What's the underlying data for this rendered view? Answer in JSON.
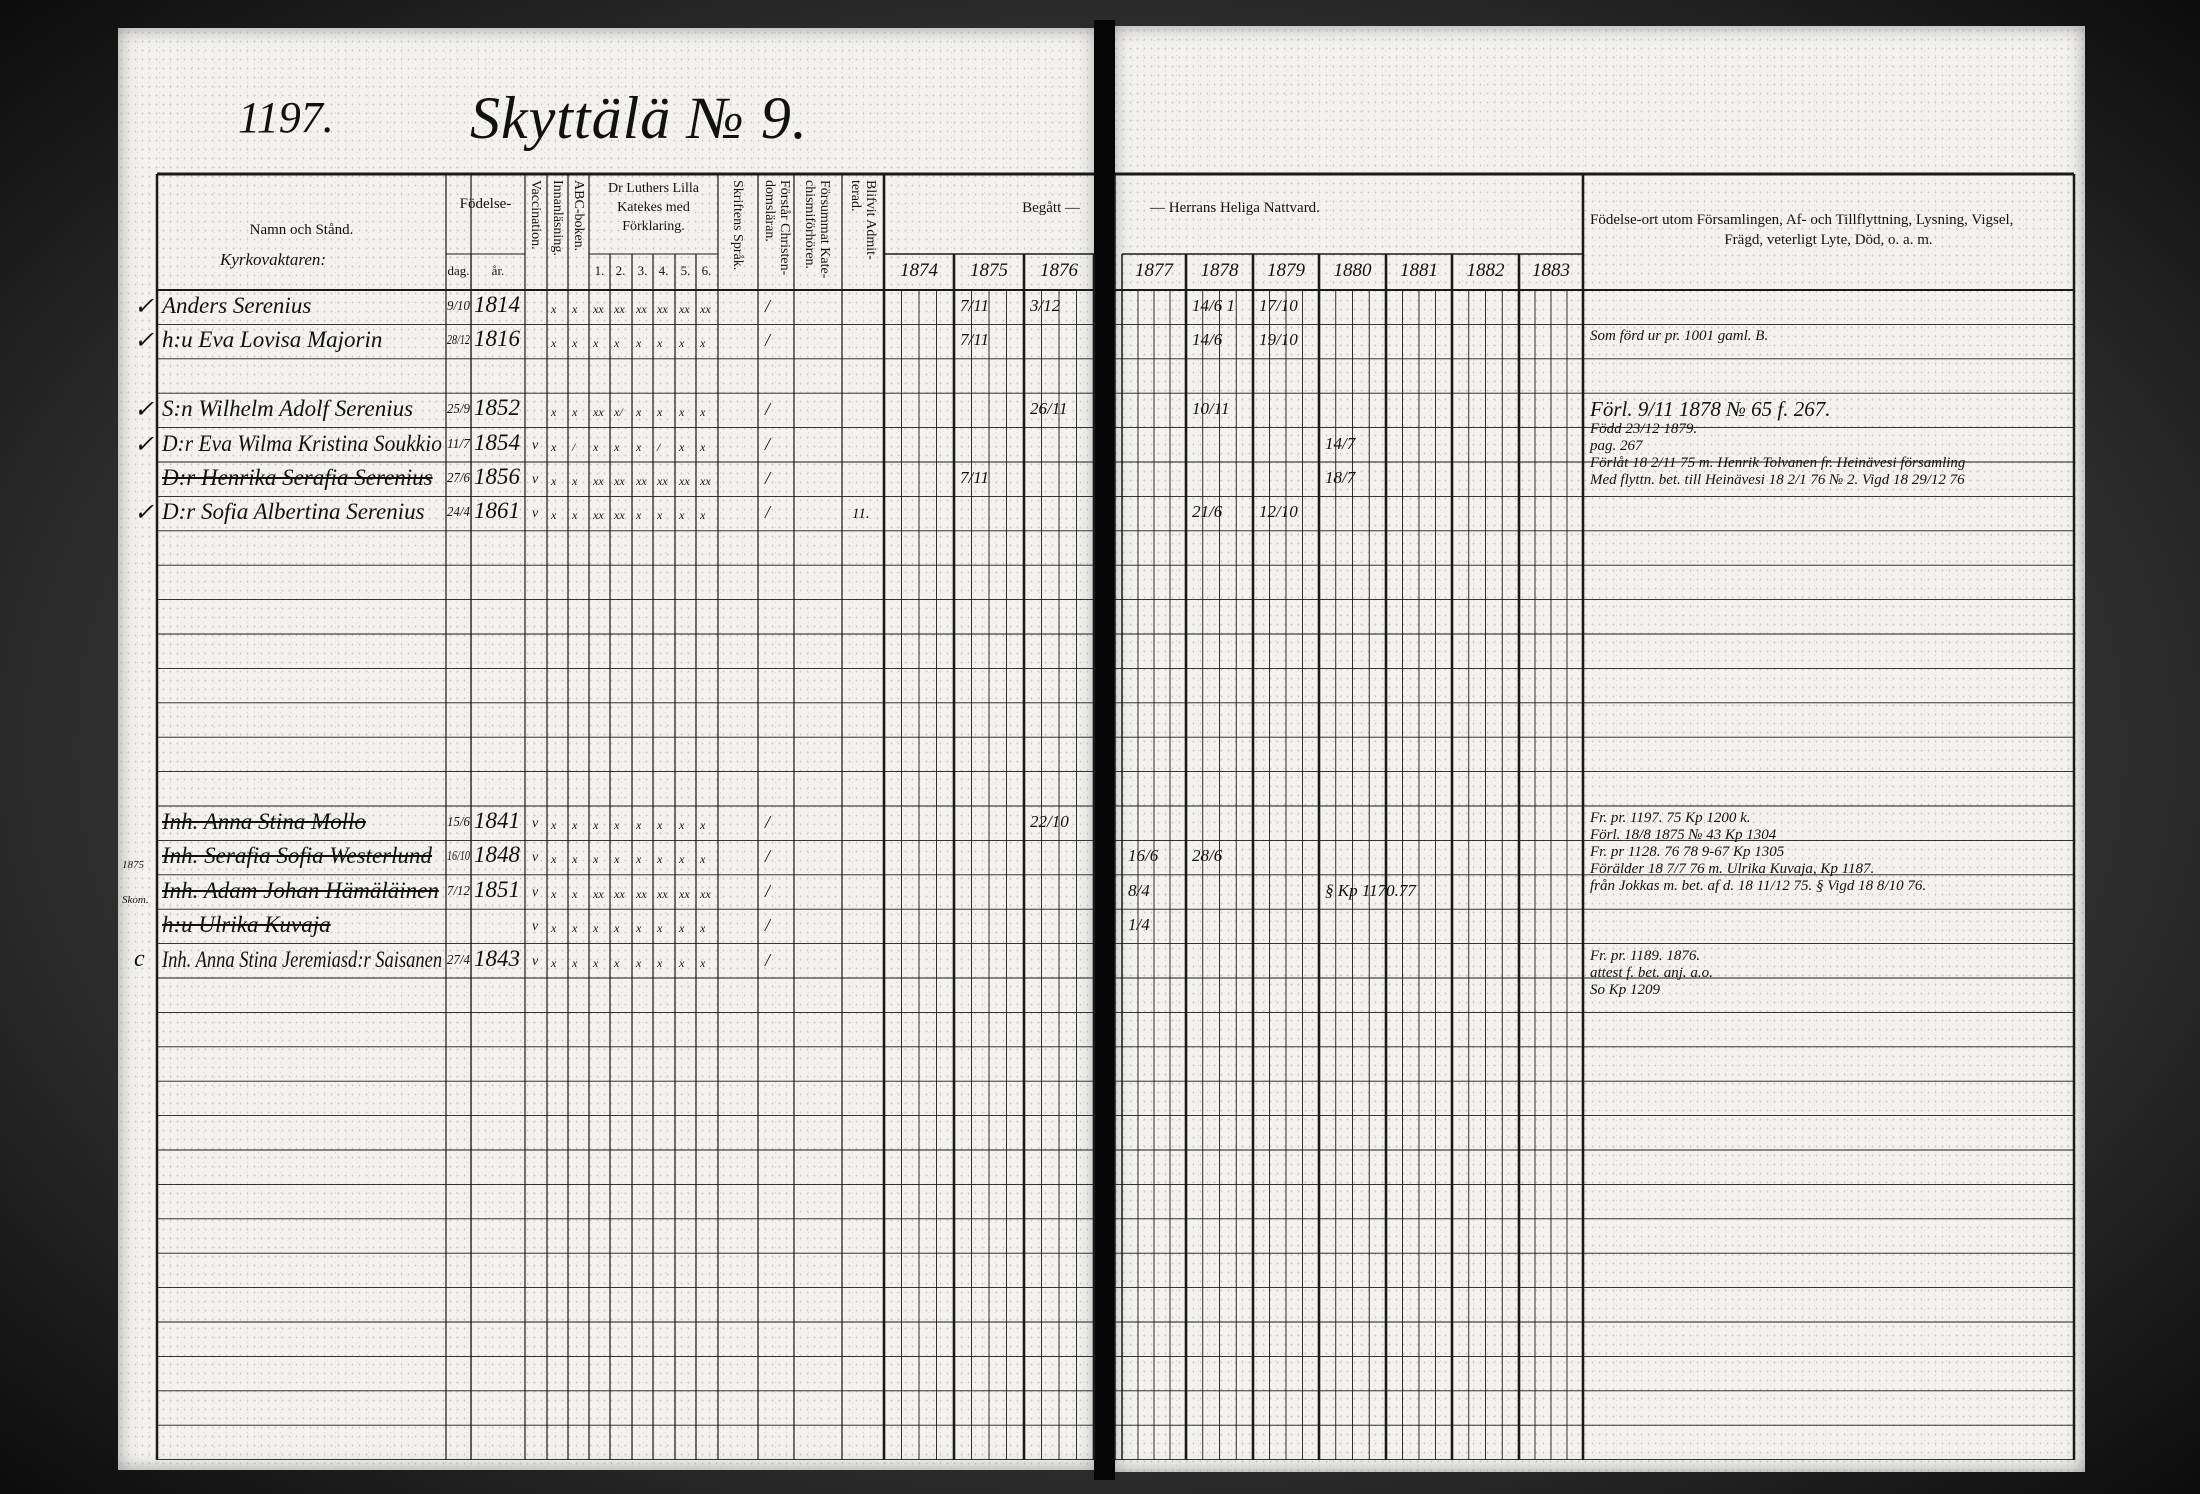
{
  "header": {
    "page_number": "1197.",
    "title": "Skyttälä № 9.",
    "name_col": "Namn och Stånd.",
    "name_sub": "Kyrkovaktaren:",
    "birth": "Födelse-",
    "birth_day": "dag.",
    "birth_year": "år.",
    "vaccination": "Vaccination.",
    "reading": "Innanläsning.",
    "abc": "ABC-boken.",
    "catechism": [
      "Dr Luthers Lilla",
      "Katekes med",
      "Förklaring."
    ],
    "catechism_parts": [
      "1.",
      "2.",
      "3.",
      "4.",
      "5.",
      "6."
    ],
    "scripture": "Skriftens Språk.",
    "understands": "Förstår Christen-domsläran.",
    "missed": "Försummat Kate-chismiförhören.",
    "admitted": "Blifvit Admit-terad.",
    "communion_left": "Begått —",
    "communion_right": "— Herrans Heliga Nattvard.",
    "years_left": [
      "1874",
      "1875",
      "1876"
    ],
    "years_right": [
      "1877",
      "1878",
      "1879",
      "1880",
      "1881",
      "1882",
      "1883"
    ],
    "remarks": [
      "Födelse-ort utom Församlingen, Af- och Tillflyttning, Lysning, Vigsel,",
      "Frägd, veterligt Lyte, Död, o. a. m."
    ]
  },
  "persons": [
    {
      "row": 0,
      "check": "✓",
      "name": "Anders Serenius",
      "struck": false,
      "day": "9/10",
      "year": "1814",
      "vacc": "",
      "marks": [
        "x",
        "x",
        "xx",
        "xx",
        "xx",
        "xx",
        "xx",
        "xx"
      ],
      "scripture": "/",
      "admitted": ""
    },
    {
      "row": 1,
      "check": "✓",
      "name": "h:u Eva Lovisa Majorin",
      "struck": false,
      "day": "28/12",
      "year": "1816",
      "vacc": "",
      "marks": [
        "x",
        "x",
        "x",
        "x",
        "x",
        "x",
        "x",
        "x"
      ],
      "scripture": "/",
      "admitted": ""
    },
    {
      "row": 3,
      "check": "✓",
      "name": "S:n Wilhelm Adolf Serenius",
      "struck": false,
      "day": "25/9",
      "year": "1852",
      "vacc": "",
      "marks": [
        "x",
        "x",
        "xx",
        "x/",
        "x",
        "x",
        "x",
        "x"
      ],
      "scripture": "/",
      "admitted": ""
    },
    {
      "row": 4,
      "check": "✓",
      "name": "D:r Eva Wilma Kristina Soukkio",
      "struck": false,
      "day": "11/7",
      "year": "1854",
      "vacc": "v",
      "marks": [
        "x",
        "/",
        "x",
        "x",
        "x",
        "/",
        "x",
        "x"
      ],
      "scripture": "/",
      "admitted": ""
    },
    {
      "row": 5,
      "check": "",
      "name": "D:r Henrika Serafia Serenius",
      "struck": true,
      "day": "27/6",
      "year": "1856",
      "vacc": "v",
      "marks": [
        "x",
        "x",
        "xx",
        "xx",
        "xx",
        "xx",
        "xx",
        "xx"
      ],
      "scripture": "/",
      "admitted": ""
    },
    {
      "row": 6,
      "check": "✓",
      "name": "D:r Sofia Albertina Serenius",
      "struck": false,
      "day": "24/4",
      "year": "1861",
      "vacc": "v",
      "marks": [
        "x",
        "x",
        "xx",
        "xx",
        "x",
        "x",
        "x",
        "x"
      ],
      "scripture": "/",
      "admitted": "11."
    },
    {
      "row": 15,
      "check": "",
      "name": "Inh. Anna Stina Mollo",
      "struck": true,
      "day": "15/6",
      "year": "1841",
      "vacc": "v",
      "marks": [
        "x",
        "x",
        "x",
        "x",
        "x",
        "x",
        "x",
        "x"
      ],
      "scripture": "/",
      "admitted": ""
    },
    {
      "row": 16,
      "check": "",
      "name": "Inh. Serafia Sofia Westerlund",
      "struck": true,
      "day": "16/10",
      "year": "1848",
      "vacc": "v",
      "marks": [
        "x",
        "x",
        "x",
        "x",
        "x",
        "x",
        "x",
        "x"
      ],
      "scripture": "/",
      "admitted": "",
      "note": "1875"
    },
    {
      "row": 17,
      "check": "",
      "name": "Inh. Adam Johan Hämäläinen",
      "struck": true,
      "day": "7/12",
      "year": "1851",
      "vacc": "v",
      "marks": [
        "x",
        "x",
        "xx",
        "xx",
        "xx",
        "xx",
        "xx",
        "xx"
      ],
      "scripture": "/",
      "admitted": "",
      "note": "Skom."
    },
    {
      "row": 18,
      "check": "",
      "name": "h:u Ulrika Kuvaja",
      "struck": true,
      "day": "",
      "year": "",
      "vacc": "v",
      "marks": [
        "x",
        "x",
        "x",
        "x",
        "x",
        "x",
        "x",
        "x"
      ],
      "scripture": "/",
      "admitted": ""
    },
    {
      "row": 19,
      "check": "c",
      "name": "Inh. Anna Stina Jeremiasd:r Saisanen",
      "struck": false,
      "day": "27/4",
      "year": "1843",
      "vacc": "v",
      "marks": [
        "x",
        "x",
        "x",
        "x",
        "x",
        "x",
        "x",
        "x"
      ],
      "scripture": "/",
      "admitted": ""
    }
  ],
  "communion": [
    {
      "row": 0,
      "year": "1875",
      "text": "7/11"
    },
    {
      "row": 1,
      "year": "1875",
      "text": "7/11"
    },
    {
      "row": 5,
      "year": "1875",
      "text": "7/11"
    },
    {
      "row": 0,
      "year": "1876",
      "text": "3/12"
    },
    {
      "row": 3,
      "year": "1876",
      "text": "26/11"
    },
    {
      "row": 15,
      "year": "1876",
      "text": "22/10"
    },
    {
      "row": 16,
      "year": "1877",
      "text": "16/6"
    },
    {
      "row": 17,
      "year": "1877",
      "text": "8/4"
    },
    {
      "row": 18,
      "year": "1877",
      "text": "1/4"
    },
    {
      "row": 0,
      "year": "1878",
      "text": "14/6 1"
    },
    {
      "row": 1,
      "year": "1878",
      "text": "14/6"
    },
    {
      "row": 3,
      "year": "1878",
      "text": "10/11"
    },
    {
      "row": 6,
      "year": "1878",
      "text": "21/6"
    },
    {
      "row": 16,
      "year": "1878",
      "text": "28/6"
    },
    {
      "row": 0,
      "year": "1879",
      "text": "17/10"
    },
    {
      "row": 1,
      "year": "1879",
      "text": "19/10"
    },
    {
      "row": 6,
      "year": "1879",
      "text": "12/10"
    },
    {
      "row": 4,
      "year": "1880",
      "text": "14/7"
    },
    {
      "row": 5,
      "year": "1880",
      "text": "18/7"
    },
    {
      "row": 17,
      "year": "1880",
      "text": "§ Kp 1170.77"
    }
  ],
  "remarks": [
    {
      "row": 1,
      "lines": [
        "Som förd ur pr. 1001 gaml. B."
      ]
    },
    {
      "row": 3,
      "lines": [
        "Förl. 9/11 1878 № 65 f. 267.",
        "Född 23/12 1879.",
        "pag. 267",
        "Förlåt 18 2/11 75 m. Henrik Tolvanen fr. Heinävesi församling",
        "Med flyttn. bet. till Heinävesi 18 2/1 76 № 2. Vigd 18 29/12 76"
      ]
    },
    {
      "row": 15,
      "lines": [
        "Fr. pr. 1197. 75   Kp 1200 k.",
        "Förl. 18/8 1875 № 43 Kp 1304",
        "Fr. pr 1128. 76  78 9-67 Kp 1305",
        "Förälder 18 7/7 76 m. Ulrika Kuvaja, Kp 1187.",
        "från Jokkas m. bet. af d. 18 11/12 75. § Vigd 18 8/10 76."
      ]
    },
    {
      "row": 19,
      "lines": [
        "Fr. pr. 1189. 1876.",
        "attest f. bet. anj. a.o.",
        "So Kp 1209"
      ]
    }
  ]
}
